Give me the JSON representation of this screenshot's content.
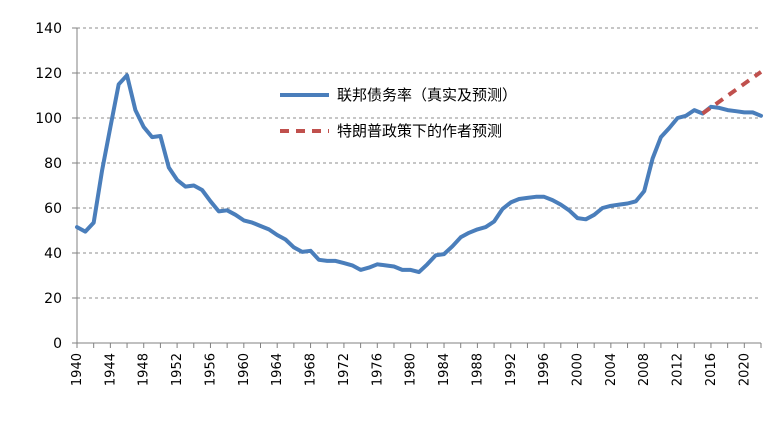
{
  "chart_data": {
    "type": "line",
    "title": "",
    "xlabel": "",
    "ylabel": "",
    "xlim": [
      1940,
      2022
    ],
    "ylim": [
      0,
      140
    ],
    "y_ticks": [
      0,
      20,
      40,
      60,
      80,
      100,
      120,
      140
    ],
    "x_ticks": [
      1940,
      1944,
      1948,
      1952,
      1956,
      1960,
      1964,
      1968,
      1972,
      1976,
      1980,
      1984,
      1988,
      1992,
      1996,
      2000,
      2004,
      2008,
      2012,
      2016,
      2020
    ],
    "grid": "horizontal-dashed",
    "legend_position": "center-right",
    "series": [
      {
        "name": "联邦债务率（真实及预测）",
        "color": "#4a7ebb",
        "style": "solid",
        "x": [
          1940,
          1941,
          1942,
          1943,
          1944,
          1945,
          1946,
          1947,
          1948,
          1949,
          1950,
          1951,
          1952,
          1953,
          1954,
          1955,
          1956,
          1957,
          1958,
          1959,
          1960,
          1961,
          1962,
          1963,
          1964,
          1965,
          1966,
          1967,
          1968,
          1969,
          1970,
          1971,
          1972,
          1973,
          1974,
          1975,
          1976,
          1977,
          1978,
          1979,
          1980,
          1981,
          1982,
          1983,
          1984,
          1985,
          1986,
          1987,
          1988,
          1989,
          1990,
          1991,
          1992,
          1993,
          1994,
          1995,
          1996,
          1997,
          1998,
          1999,
          2000,
          2001,
          2002,
          2003,
          2004,
          2005,
          2006,
          2007,
          2008,
          2009,
          2010,
          2011,
          2012,
          2013,
          2014,
          2015,
          2016,
          2017,
          2018,
          2019,
          2020,
          2021,
          2022
        ],
        "values": [
          51.5,
          49.5,
          53.5,
          76.5,
          96,
          115,
          119,
          103.5,
          96,
          91.5,
          92,
          78,
          72.5,
          69.5,
          70,
          68,
          63,
          58.5,
          59,
          57,
          54.5,
          53.5,
          52,
          50.5,
          48,
          46,
          42.5,
          40.5,
          41,
          37,
          36.5,
          36.5,
          35.5,
          34.5,
          32.5,
          33.5,
          35,
          34.5,
          34,
          32.5,
          32.5,
          31.5,
          35,
          39,
          39.5,
          43,
          47,
          49,
          50.5,
          51.5,
          54,
          59.5,
          62.5,
          64,
          64.5,
          65,
          65,
          63.5,
          61.5,
          59,
          55.5,
          55,
          57,
          60,
          61,
          61.5,
          62,
          63,
          67.5,
          82,
          91.5,
          95.5,
          100,
          101,
          103.5,
          102,
          105,
          104.5,
          103.5,
          103,
          102.5,
          102.5,
          101
        ]
      },
      {
        "name": "特朗普政策下的作者预测",
        "color": "#c0504d",
        "style": "dashed",
        "x": [
          2015,
          2022
        ],
        "values": [
          102,
          120.5
        ]
      }
    ]
  }
}
